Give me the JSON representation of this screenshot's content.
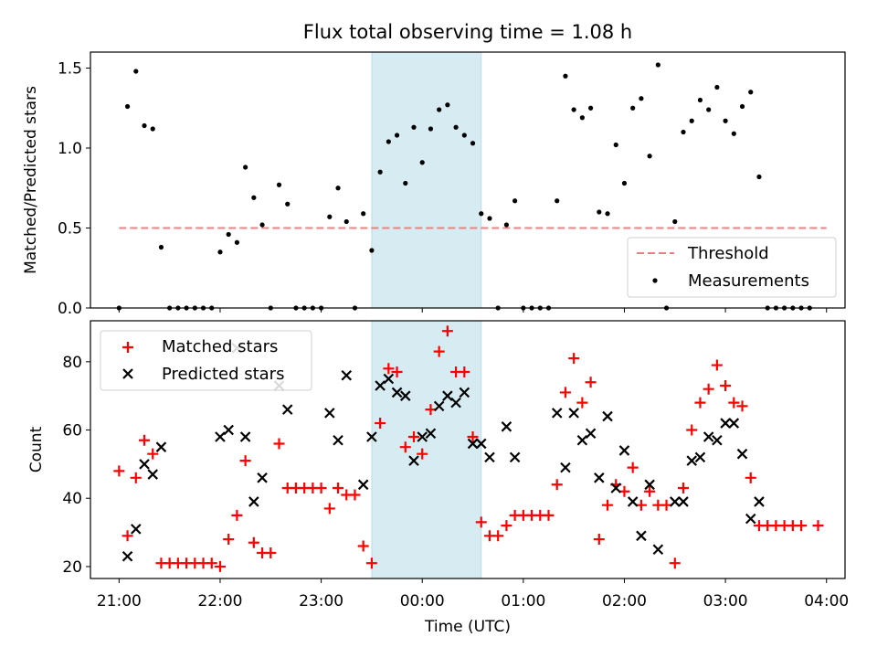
{
  "chart_data": [
    {
      "type": "scatter",
      "title": "Flux total observing time = 1.08 h",
      "ylabel": "Matched/Predicted stars",
      "xlabel": "",
      "xlim": [
        "20:43",
        "04:11"
      ],
      "ylim": [
        0,
        1.6
      ],
      "x_ticks": [
        "21:00",
        "22:00",
        "23:00",
        "00:00",
        "01:00",
        "02:00",
        "03:00",
        "04:00"
      ],
      "y_ticks": [
        "0.0",
        "0.5",
        "1.0",
        "1.5"
      ],
      "shaded_interval": [
        "23:30",
        "00:35"
      ],
      "shade_color": "#add8e6",
      "legend": "lower right",
      "series": [
        {
          "name": "Threshold",
          "style": "dashed-line",
          "color": "#f08080",
          "points": [
            [
              "21:00",
              0.5
            ],
            [
              "04:00",
              0.5
            ]
          ]
        },
        {
          "name": "Measurements",
          "style": "dot",
          "color": "#000000",
          "points": [
            [
              "21:00",
              0.0
            ],
            [
              "21:05",
              1.26
            ],
            [
              "21:10",
              1.48
            ],
            [
              "21:15",
              1.14
            ],
            [
              "21:20",
              1.12
            ],
            [
              "21:25",
              0.38
            ],
            [
              "21:30",
              0.0
            ],
            [
              "21:35",
              0.0
            ],
            [
              "21:40",
              0.0
            ],
            [
              "21:45",
              0.0
            ],
            [
              "21:50",
              0.0
            ],
            [
              "21:55",
              0.0
            ],
            [
              "22:00",
              0.35
            ],
            [
              "22:05",
              0.46
            ],
            [
              "22:10",
              0.41
            ],
            [
              "22:15",
              0.88
            ],
            [
              "22:20",
              0.69
            ],
            [
              "22:25",
              0.52
            ],
            [
              "22:30",
              0.0
            ],
            [
              "22:35",
              0.77
            ],
            [
              "22:40",
              0.65
            ],
            [
              "22:45",
              0.0
            ],
            [
              "22:50",
              0.0
            ],
            [
              "22:55",
              0.0
            ],
            [
              "23:00",
              0.0
            ],
            [
              "23:05",
              0.57
            ],
            [
              "23:10",
              0.75
            ],
            [
              "23:15",
              0.54
            ],
            [
              "23:20",
              0.0
            ],
            [
              "23:25",
              0.59
            ],
            [
              "23:30",
              0.36
            ],
            [
              "23:35",
              0.85
            ],
            [
              "23:40",
              1.04
            ],
            [
              "23:45",
              1.08
            ],
            [
              "23:50",
              0.78
            ],
            [
              "23:55",
              1.13
            ],
            [
              "00:00",
              0.91
            ],
            [
              "00:05",
              1.12
            ],
            [
              "00:10",
              1.24
            ],
            [
              "00:15",
              1.27
            ],
            [
              "00:20",
              1.13
            ],
            [
              "00:25",
              1.08
            ],
            [
              "00:30",
              1.03
            ],
            [
              "00:35",
              0.59
            ],
            [
              "00:40",
              0.56
            ],
            [
              "00:45",
              0.0
            ],
            [
              "00:50",
              0.52
            ],
            [
              "00:55",
              0.67
            ],
            [
              "01:00",
              0.0
            ],
            [
              "01:05",
              0.0
            ],
            [
              "01:10",
              0.0
            ],
            [
              "01:15",
              0.0
            ],
            [
              "01:20",
              0.67
            ],
            [
              "01:25",
              1.45
            ],
            [
              "01:30",
              1.24
            ],
            [
              "01:35",
              1.19
            ],
            [
              "01:40",
              1.25
            ],
            [
              "01:45",
              0.6
            ],
            [
              "01:50",
              0.59
            ],
            [
              "01:55",
              1.02
            ],
            [
              "02:00",
              0.78
            ],
            [
              "02:05",
              1.25
            ],
            [
              "02:10",
              1.31
            ],
            [
              "02:15",
              0.95
            ],
            [
              "02:20",
              1.52
            ],
            [
              "02:25",
              0.0
            ],
            [
              "02:30",
              0.54
            ],
            [
              "02:35",
              1.1
            ],
            [
              "02:40",
              1.17
            ],
            [
              "02:45",
              1.3
            ],
            [
              "02:50",
              1.24
            ],
            [
              "02:55",
              1.38
            ],
            [
              "03:00",
              1.17
            ],
            [
              "03:05",
              1.09
            ],
            [
              "03:10",
              1.26
            ],
            [
              "03:15",
              1.35
            ],
            [
              "03:20",
              0.82
            ],
            [
              "03:25",
              0.0
            ],
            [
              "03:30",
              0.0
            ],
            [
              "03:35",
              0.0
            ],
            [
              "03:40",
              0.0
            ],
            [
              "03:45",
              0.0
            ],
            [
              "03:50",
              0.0
            ]
          ]
        }
      ]
    },
    {
      "type": "scatter",
      "title": "",
      "ylabel": "Count",
      "xlabel": "Time (UTC)",
      "xlim": [
        "20:43",
        "04:11"
      ],
      "ylim": [
        16.5,
        92
      ],
      "x_ticks": [
        "21:00",
        "22:00",
        "23:00",
        "00:00",
        "01:00",
        "02:00",
        "03:00",
        "04:00"
      ],
      "y_ticks": [
        "20",
        "40",
        "60",
        "80"
      ],
      "shaded_interval": [
        "23:30",
        "00:35"
      ],
      "shade_color": "#add8e6",
      "legend": "upper left",
      "series": [
        {
          "name": "Matched stars",
          "style": "plus",
          "color": "#ff0000",
          "points": [
            [
              "21:00",
              48
            ],
            [
              "21:05",
              29
            ],
            [
              "21:10",
              46
            ],
            [
              "21:15",
              57
            ],
            [
              "21:20",
              53
            ],
            [
              "21:25",
              21
            ],
            [
              "21:30",
              21
            ],
            [
              "21:35",
              21
            ],
            [
              "21:40",
              21
            ],
            [
              "21:45",
              21
            ],
            [
              "21:50",
              21
            ],
            [
              "21:55",
              21
            ],
            [
              "22:00",
              20
            ],
            [
              "22:05",
              28
            ],
            [
              "22:10",
              35
            ],
            [
              "22:15",
              51
            ],
            [
              "22:20",
              27
            ],
            [
              "22:25",
              24
            ],
            [
              "22:30",
              24
            ],
            [
              "22:35",
              56
            ],
            [
              "22:40",
              43
            ],
            [
              "22:45",
              43
            ],
            [
              "22:50",
              43
            ],
            [
              "22:55",
              43
            ],
            [
              "23:00",
              43
            ],
            [
              "23:05",
              37
            ],
            [
              "23:10",
              43
            ],
            [
              "23:15",
              41
            ],
            [
              "23:20",
              41
            ],
            [
              "23:25",
              26
            ],
            [
              "23:30",
              21
            ],
            [
              "23:35",
              62
            ],
            [
              "23:40",
              78
            ],
            [
              "23:45",
              77
            ],
            [
              "23:50",
              55
            ],
            [
              "23:55",
              58
            ],
            [
              "00:00",
              53
            ],
            [
              "00:05",
              66
            ],
            [
              "00:10",
              83
            ],
            [
              "00:15",
              89
            ],
            [
              "00:20",
              77
            ],
            [
              "00:25",
              77
            ],
            [
              "00:30",
              58
            ],
            [
              "00:35",
              33
            ],
            [
              "00:40",
              29
            ],
            [
              "00:45",
              29
            ],
            [
              "00:50",
              32
            ],
            [
              "00:55",
              35
            ],
            [
              "01:00",
              35
            ],
            [
              "01:05",
              35
            ],
            [
              "01:10",
              35
            ],
            [
              "01:15",
              35
            ],
            [
              "01:20",
              44
            ],
            [
              "01:25",
              71
            ],
            [
              "01:30",
              81
            ],
            [
              "01:35",
              68
            ],
            [
              "01:40",
              74
            ],
            [
              "01:45",
              28
            ],
            [
              "01:50",
              38
            ],
            [
              "01:55",
              44
            ],
            [
              "02:00",
              42
            ],
            [
              "02:05",
              49
            ],
            [
              "02:10",
              38
            ],
            [
              "02:15",
              42
            ],
            [
              "02:20",
              38
            ],
            [
              "02:25",
              38
            ],
            [
              "02:30",
              21
            ],
            [
              "02:35",
              43
            ],
            [
              "02:40",
              60
            ],
            [
              "02:45",
              68
            ],
            [
              "02:50",
              72
            ],
            [
              "02:55",
              79
            ],
            [
              "03:00",
              73
            ],
            [
              "03:05",
              68
            ],
            [
              "03:10",
              67
            ],
            [
              "03:15",
              46
            ],
            [
              "03:20",
              32
            ],
            [
              "03:25",
              32
            ],
            [
              "03:30",
              32
            ],
            [
              "03:35",
              32
            ],
            [
              "03:40",
              32
            ],
            [
              "03:45",
              32
            ],
            [
              "03:55",
              32
            ]
          ]
        },
        {
          "name": "Predicted stars",
          "style": "x",
          "color": "#000000",
          "points": [
            [
              "21:05",
              23
            ],
            [
              "21:10",
              31
            ],
            [
              "21:15",
              50
            ],
            [
              "21:20",
              47
            ],
            [
              "21:25",
              55
            ],
            [
              "22:00",
              58
            ],
            [
              "22:05",
              60
            ],
            [
              "22:10",
              84
            ],
            [
              "22:15",
              58
            ],
            [
              "22:20",
              39
            ],
            [
              "22:25",
              46
            ],
            [
              "22:35",
              73
            ],
            [
              "22:40",
              66
            ],
            [
              "23:05",
              65
            ],
            [
              "23:10",
              57
            ],
            [
              "23:15",
              76
            ],
            [
              "23:25",
              44
            ],
            [
              "23:30",
              58
            ],
            [
              "23:35",
              73
            ],
            [
              "23:40",
              75
            ],
            [
              "23:45",
              71
            ],
            [
              "23:50",
              70
            ],
            [
              "23:55",
              51
            ],
            [
              "00:00",
              58
            ],
            [
              "00:05",
              59
            ],
            [
              "00:10",
              67
            ],
            [
              "00:15",
              70
            ],
            [
              "00:20",
              68
            ],
            [
              "00:25",
              71
            ],
            [
              "00:30",
              56
            ],
            [
              "00:35",
              56
            ],
            [
              "00:40",
              52
            ],
            [
              "00:50",
              61
            ],
            [
              "00:55",
              52
            ],
            [
              "01:20",
              65
            ],
            [
              "01:25",
              49
            ],
            [
              "01:30",
              65
            ],
            [
              "01:35",
              57
            ],
            [
              "01:40",
              59
            ],
            [
              "01:45",
              46
            ],
            [
              "01:50",
              64
            ],
            [
              "01:55",
              43
            ],
            [
              "02:00",
              54
            ],
            [
              "02:05",
              39
            ],
            [
              "02:10",
              29
            ],
            [
              "02:15",
              44
            ],
            [
              "02:20",
              25
            ],
            [
              "02:30",
              39
            ],
            [
              "02:35",
              39
            ],
            [
              "02:40",
              51
            ],
            [
              "02:45",
              52
            ],
            [
              "02:50",
              58
            ],
            [
              "02:55",
              57
            ],
            [
              "03:00",
              62
            ],
            [
              "03:05",
              62
            ],
            [
              "03:10",
              53
            ],
            [
              "03:15",
              34
            ],
            [
              "03:20",
              39
            ]
          ]
        }
      ]
    }
  ]
}
